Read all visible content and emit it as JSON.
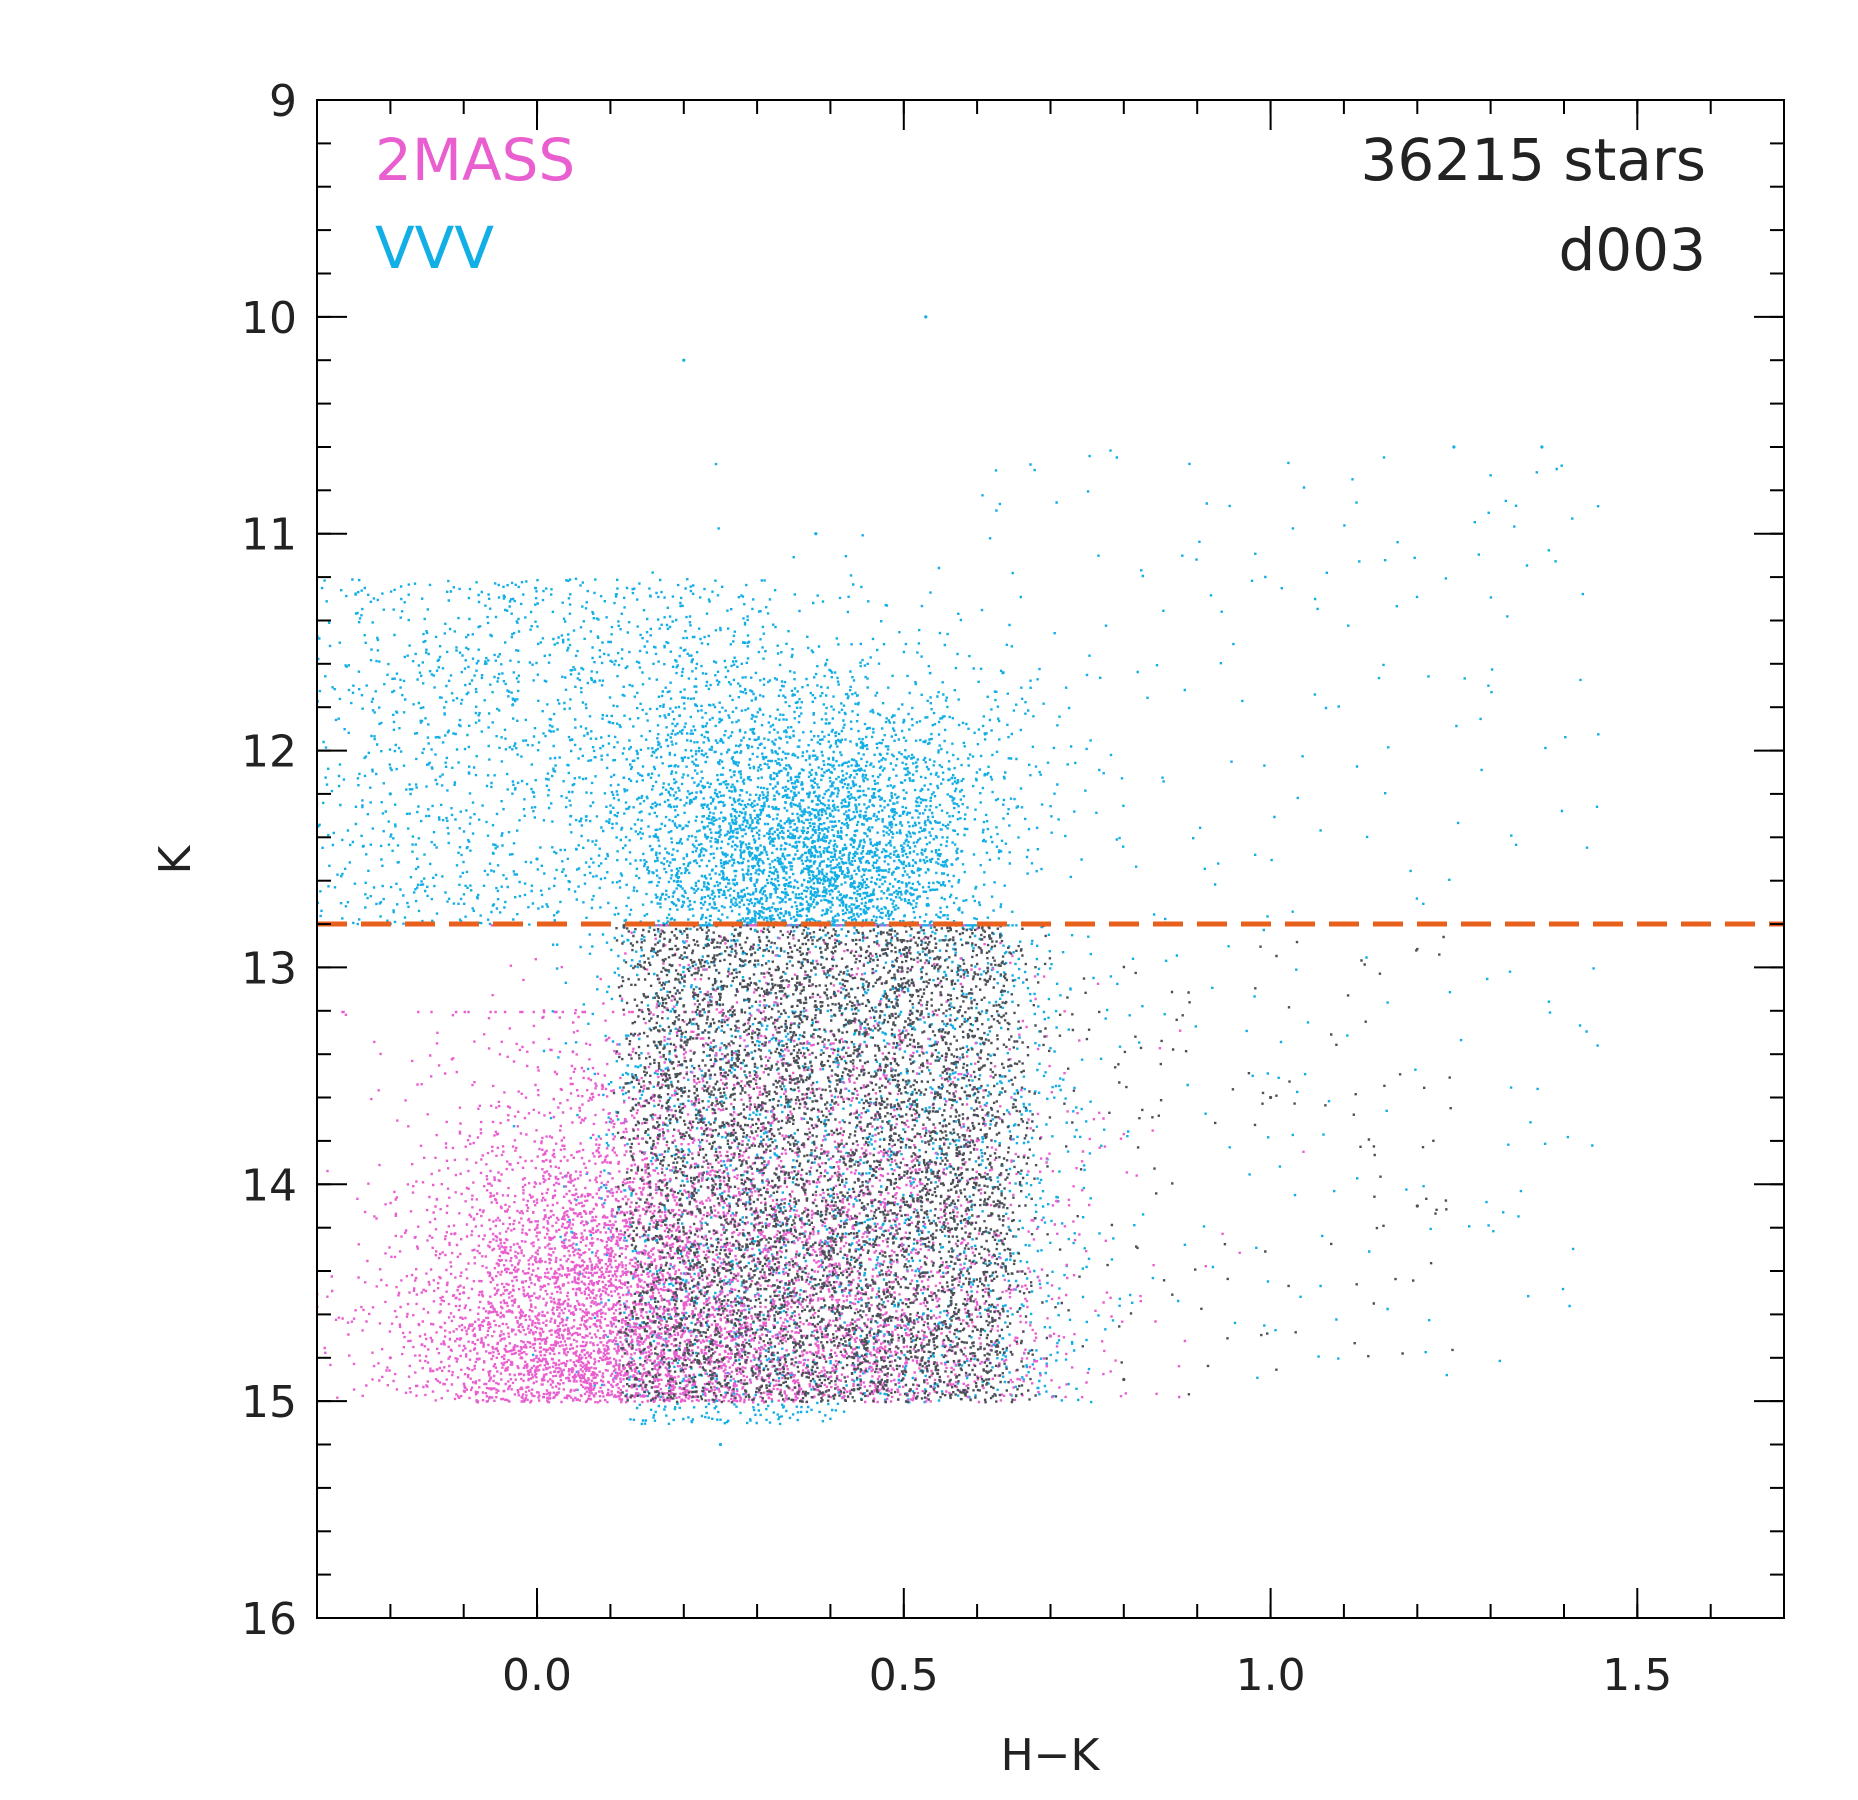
{
  "chart_data": {
    "type": "scatter",
    "title": "",
    "xlabel": "H−K",
    "ylabel": "K",
    "xlim": [
      -0.3,
      1.7
    ],
    "ylim": [
      9,
      16
    ],
    "y_inverted": true,
    "x_ticks": [
      0.0,
      0.5,
      1.0,
      1.5
    ],
    "x_tick_labels": [
      "0.0",
      "0.5",
      "1.0",
      "1.5"
    ],
    "x_minor_step": 0.1,
    "y_ticks": [
      9,
      10,
      11,
      12,
      13,
      14,
      15,
      16
    ],
    "y_tick_labels": [
      "9",
      "10",
      "11",
      "12",
      "13",
      "14",
      "15",
      "16"
    ],
    "y_minor_step": 0.2,
    "grid": false,
    "legend_placement": "top-left",
    "legend": [
      {
        "label": "2MASS",
        "color": "#ea5fd0"
      },
      {
        "label": "VVV",
        "color": "#12aee6"
      }
    ],
    "annotations": [
      {
        "text": "36215 stars",
        "placement": "top-right"
      },
      {
        "text": "d003",
        "placement": "top-right"
      }
    ],
    "reference_line": {
      "orientation": "horizontal",
      "y": 12.8,
      "style": "dashed",
      "color": "#e8601c"
    },
    "series": [
      {
        "name": "2MASS",
        "color": "#ea5fd0",
        "point_count": 14000,
        "distribution": "K from 12.8 to 15.0; H−K mostly −0.25 to 0.75, densest at 0.0–0.45",
        "points": [
          [
            -0.2,
            14.8
          ],
          [
            -0.1,
            14.5
          ],
          [
            0.0,
            14.2
          ],
          [
            0.05,
            14.6
          ],
          [
            0.1,
            13.9
          ],
          [
            0.2,
            14.3
          ],
          [
            0.3,
            13.5
          ],
          [
            0.4,
            14.1
          ],
          [
            0.5,
            14.6
          ],
          [
            0.6,
            13.8
          ],
          [
            0.7,
            14.7
          ]
        ]
      },
      {
        "name": "VVV",
        "color": "#12aee6",
        "point_count": 22215,
        "distribution": "K from 10.0 to 15.3; H−K mostly −0.3 to 1.0, densest near 0.35, K 12.2–12.8",
        "points": [
          [
            0.2,
            10.2
          ],
          [
            0.53,
            10.0
          ],
          [
            0.38,
            11.0
          ],
          [
            0.35,
            12.5
          ],
          [
            0.4,
            12.3
          ],
          [
            0.0,
            12.5
          ],
          [
            -0.2,
            12.2
          ],
          [
            0.2,
            13.0
          ],
          [
            0.25,
            15.2
          ],
          [
            1.25,
            10.6
          ],
          [
            1.37,
            10.6
          ]
        ]
      },
      {
        "name": "",
        "color": "#4b5058",
        "point_count": 14000,
        "distribution": "K from 12.8 to 15.0; H−K 0.1 to 0.65, sparse tail to 1.25",
        "points": [
          [
            0.15,
            14.5
          ],
          [
            0.25,
            14.0
          ],
          [
            0.35,
            13.3
          ],
          [
            0.45,
            14.2
          ],
          [
            0.55,
            13.6
          ],
          [
            0.8,
            14.9
          ],
          [
            1.0,
            13.6
          ],
          [
            1.2,
            14.1
          ]
        ]
      }
    ]
  }
}
